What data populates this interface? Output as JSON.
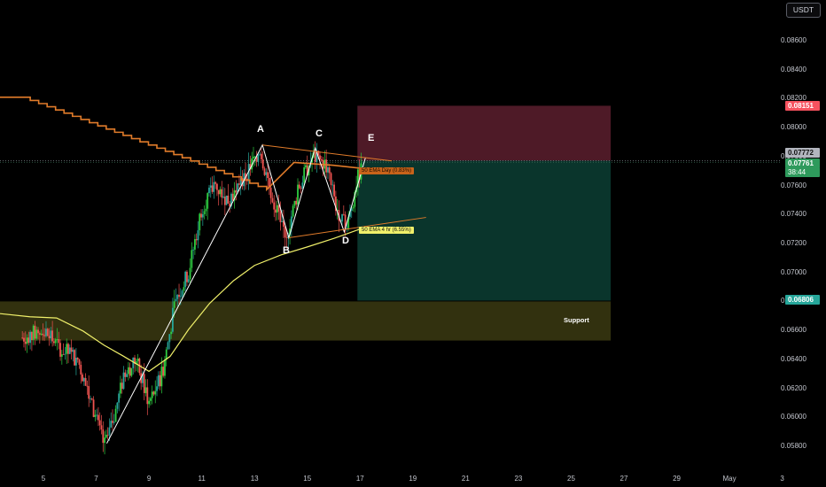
{
  "toolbar": {
    "currency": "USDT"
  },
  "price_labels": {
    "target": "0.08151",
    "last": "0.07772",
    "current": "0.07761",
    "countdown": "38:44",
    "stop": "0.06806"
  },
  "annotations": {
    "wave_A": "A",
    "wave_B": "B",
    "wave_C": "C",
    "wave_D": "D",
    "wave_E": "E",
    "ema_day": "50 EMA Day (0.83%)",
    "ema_4h": "50 EMA 4 hr (6.55%)",
    "support": "Support"
  },
  "colors": {
    "up_candle": "#26a69a",
    "up_candle_bright": "#2ecc40",
    "down_candle": "#ef5350",
    "ema_day": "#e07b2a",
    "ema_4h": "#f0f06a",
    "target_zone": "#5c1e2e",
    "stop_zone": "#0b3b31",
    "support_zone": "#3b3a12",
    "target_label": "#f7525f",
    "current_label": "#2e9a5c",
    "stop_label": "#26a69a"
  },
  "chart_data": {
    "type": "candlestick",
    "symbol_quote": "USDT",
    "y_axis_ticks": [
      "0.08600",
      "0.08400",
      "0.08200",
      "0.08000",
      "0.07800",
      "0.07600",
      "0.07400",
      "0.07200",
      "0.07000",
      "0.06800",
      "0.06600",
      "0.06400",
      "0.06200",
      "0.06000",
      "0.05800"
    ],
    "x_axis_ticks": [
      "5",
      "7",
      "9",
      "11",
      "13",
      "15",
      "17",
      "19",
      "21",
      "23",
      "25",
      "27",
      "29",
      "May",
      "3"
    ],
    "ylim": [
      0.0572,
      0.0872
    ],
    "ohlc_approx": [
      {
        "day": 4.2,
        "close": 0.0655
      },
      {
        "day": 5.0,
        "close": 0.066
      },
      {
        "day": 5.6,
        "close": 0.0648
      },
      {
        "day": 6.3,
        "close": 0.064
      },
      {
        "day": 6.8,
        "close": 0.061
      },
      {
        "day": 7.3,
        "close": 0.058
      },
      {
        "day": 7.6,
        "close": 0.0595
      },
      {
        "day": 8.0,
        "close": 0.0625
      },
      {
        "day": 8.5,
        "close": 0.064
      },
      {
        "day": 9.0,
        "close": 0.061
      },
      {
        "day": 9.5,
        "close": 0.063
      },
      {
        "day": 10.0,
        "close": 0.068
      },
      {
        "day": 10.5,
        "close": 0.07
      },
      {
        "day": 11.0,
        "close": 0.0745
      },
      {
        "day": 11.5,
        "close": 0.076
      },
      {
        "day": 12.0,
        "close": 0.075
      },
      {
        "day": 12.6,
        "close": 0.0765
      },
      {
        "day": 13.2,
        "close": 0.0785
      },
      {
        "day": 13.7,
        "close": 0.075
      },
      {
        "day": 14.2,
        "close": 0.0725
      },
      {
        "day": 14.7,
        "close": 0.076
      },
      {
        "day": 15.2,
        "close": 0.078
      },
      {
        "day": 15.7,
        "close": 0.0775
      },
      {
        "day": 16.1,
        "close": 0.0745
      },
      {
        "day": 16.5,
        "close": 0.073
      },
      {
        "day": 16.9,
        "close": 0.0765
      },
      {
        "day": 17.1,
        "close": 0.0776
      }
    ],
    "series": [
      {
        "name": "50 EMA Day",
        "current": 0.0772
      },
      {
        "name": "50 EMA 4 hr",
        "current": 0.0728
      }
    ],
    "waves": {
      "A": 0.0788,
      "B": 0.0724,
      "C": 0.0786,
      "D": 0.0728,
      "E": 0.0779
    },
    "position": {
      "entry": 0.07772,
      "target": 0.08151,
      "stop": 0.06806
    },
    "support_zone": [
      0.0653,
      0.068
    ]
  }
}
